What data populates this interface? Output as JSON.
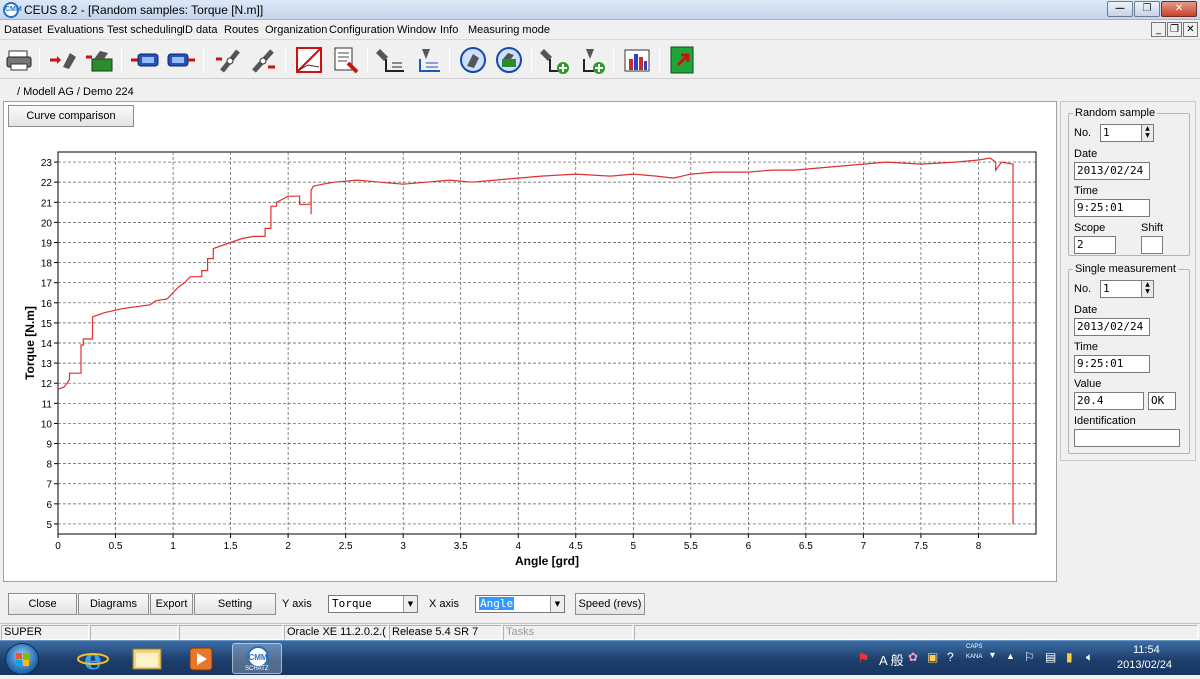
{
  "window": {
    "title": "CEUS 8.2 - [Random samples: Torque [N.m]]",
    "app_icon_text": "CMM"
  },
  "menu": {
    "items": [
      "Dataset",
      "Evaluations",
      "Test scheduling",
      "ID data",
      "Routes",
      "Organization",
      "Configuration",
      "Window",
      "Info",
      "Measuring mode"
    ]
  },
  "toolbar": {
    "icons": [
      "printer-icon",
      "import-arrow-icon",
      "machine-data-icon",
      "load-record-icon",
      "save-record-icon",
      "connect-icon",
      "disconnect-icon",
      "chart-frame-icon",
      "report-edit-icon",
      "tool-list-icon",
      "tool-list-alt-icon",
      "refresh-tool-icon",
      "refresh-machine-icon",
      "add-tool-icon",
      "add-tool-alt-icon",
      "bar-chart-icon",
      "exit-icon"
    ]
  },
  "path": "/ Modell AG / Demo 224",
  "buttons": {
    "curve_comparison": "Curve comparison",
    "close": "Close",
    "diagrams": "Diagrams",
    "export": "Export",
    "setting": "Setting",
    "speed": "Speed (revs)"
  },
  "axis_selector": {
    "y_label": "Y axis",
    "y_value": "Torque",
    "x_label": "X axis",
    "x_value": "Angle"
  },
  "random_sample": {
    "title": "Random sample",
    "no_label": "No.",
    "no_value": "1",
    "date_label": "Date",
    "date_value": "2013/02/24",
    "time_label": "Time",
    "time_value": "9:25:01",
    "scope_label": "Scope",
    "scope_value": "2",
    "shift_label": "Shift",
    "shift_value": ""
  },
  "single_measurement": {
    "title": "Single measurement",
    "no_label": "No.",
    "no_value": "1",
    "date_label": "Date",
    "date_value": "2013/02/24",
    "time_label": "Time",
    "time_value": "9:25:01",
    "value_label": "Value",
    "value_value": "20.4",
    "status_value": "OK",
    "identification_label": "Identification",
    "identification_value": ""
  },
  "statusbar": {
    "user": "SUPER",
    "cell2": "",
    "cell3": "",
    "db": "Oracle XE 11.2.0.2.(",
    "release": "Release 5.4 SR 7",
    "tasks": "Tasks"
  },
  "taskbar": {
    "ime": "A 般",
    "caps": "CAPS",
    "kana": "KANA",
    "time": "11:54",
    "date": "2013/02/24",
    "cmm_label": "SCHATZ"
  },
  "colors": {
    "curve": "#e03030",
    "grid": "#555555",
    "accent": "#3399ff"
  },
  "chart_data": {
    "type": "line",
    "title": "",
    "xlabel": "Angle  [grd]",
    "ylabel": "Torque  [N.m]",
    "xlim": [
      0,
      8.5
    ],
    "ylim": [
      4.5,
      23.5
    ],
    "x_ticks": [
      0,
      0.5,
      1,
      1.5,
      2,
      2.5,
      3,
      3.5,
      4,
      4.5,
      5,
      5.5,
      6,
      6.5,
      7,
      7.5,
      8
    ],
    "x_tick_labels": [
      "0",
      "0.5",
      "1",
      "1.5",
      "2",
      "2.5",
      "3",
      "3.5",
      "4",
      "4.5",
      "5",
      "5.5",
      "6",
      "6.5",
      "7",
      "7.5",
      "8"
    ],
    "y_ticks": [
      5,
      6,
      7,
      8,
      9,
      10,
      11,
      12,
      13,
      14,
      15,
      16,
      17,
      18,
      19,
      20,
      21,
      22,
      23
    ],
    "y_tick_labels": [
      "5",
      "6",
      "7",
      "8",
      "9",
      "10",
      "11",
      "12",
      "13",
      "14",
      "15",
      "16",
      "17",
      "18",
      "19",
      "20",
      "21",
      "22",
      "23"
    ],
    "grid": true,
    "series": [
      {
        "name": "",
        "x": [
          0,
          0.05,
          0.08,
          0.1,
          0.1,
          0.2,
          0.2,
          0.22,
          0.22,
          0.3,
          0.3,
          0.4,
          0.55,
          0.8,
          0.85,
          0.95,
          1.0,
          1.05,
          1.1,
          1.15,
          1.25,
          1.25,
          1.3,
          1.3,
          1.35,
          1.35,
          1.45,
          1.55,
          1.6,
          1.7,
          1.8,
          1.8,
          1.85,
          1.85,
          1.9,
          1.9,
          2.0,
          2.1,
          2.1,
          2.2,
          2.2,
          2.2,
          2.22,
          2.3,
          2.4,
          2.6,
          2.8,
          3.0,
          3.2,
          3.4,
          3.6,
          3.8,
          4.0,
          4.2,
          4.5,
          4.8,
          5.0,
          5.2,
          5.35,
          5.5,
          5.7,
          6.0,
          6.2,
          6.4,
          6.6,
          6.8,
          7.0,
          7.2,
          7.5,
          7.8,
          8.0,
          8.1,
          8.15,
          8.15,
          8.2,
          8.3,
          8.3
        ],
        "y": [
          11.7,
          11.8,
          12.0,
          12.2,
          12.5,
          12.5,
          13.9,
          13.9,
          14.2,
          14.2,
          15.3,
          15.5,
          15.7,
          15.9,
          16.1,
          16.2,
          16.5,
          16.8,
          17.0,
          17.3,
          17.3,
          17.6,
          17.6,
          18.2,
          18.2,
          18.7,
          18.9,
          19.1,
          19.2,
          19.3,
          19.3,
          19.7,
          19.7,
          20.8,
          20.8,
          21.0,
          21.3,
          21.3,
          20.9,
          20.9,
          20.4,
          21.6,
          21.8,
          21.9,
          22.0,
          22.1,
          22.0,
          21.9,
          22.0,
          22.1,
          22.0,
          22.1,
          22.2,
          22.3,
          22.4,
          22.3,
          22.4,
          22.3,
          22.2,
          22.4,
          22.5,
          22.5,
          22.6,
          22.6,
          22.7,
          22.8,
          22.9,
          23.0,
          22.9,
          23.0,
          23.1,
          23.2,
          23.0,
          22.6,
          23.0,
          22.9,
          5.0
        ]
      }
    ]
  }
}
